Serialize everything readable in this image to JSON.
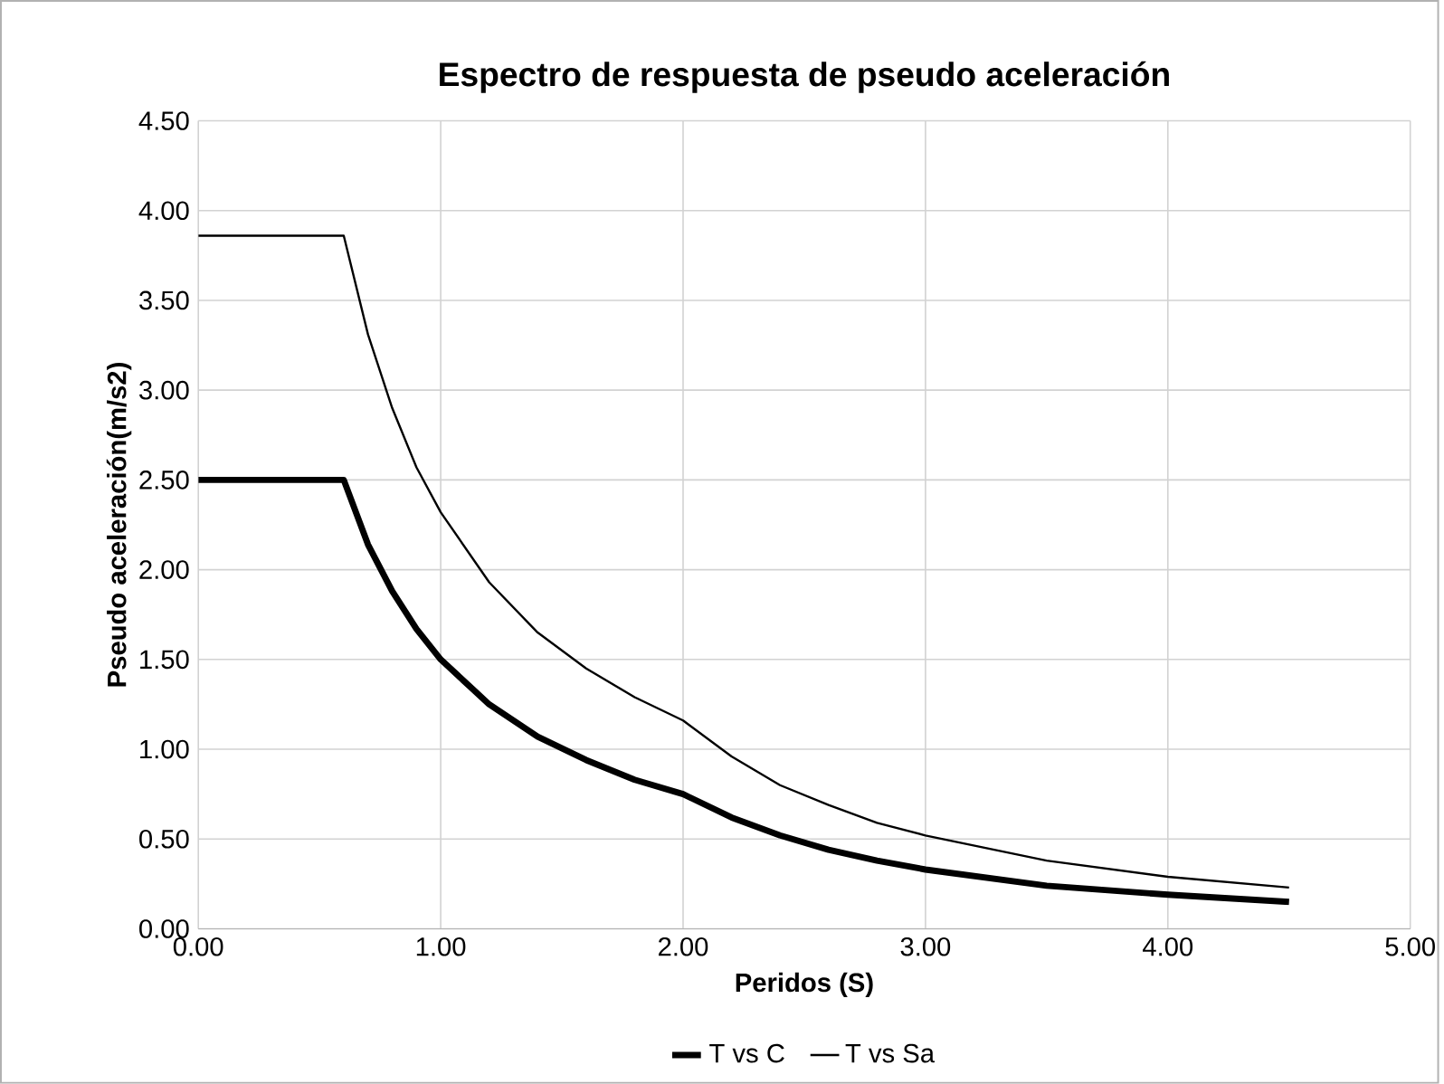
{
  "chart_data": {
    "type": "line",
    "title": "Espectro de respuesta de pseudo aceleración",
    "xlabel": "Peridos (S)",
    "ylabel": "Pseudo aceleración(m/s2)",
    "x": [
      0,
      0.6,
      0.7,
      0.8,
      0.9,
      1.0,
      1.2,
      1.4,
      1.6,
      1.8,
      2.0,
      2.2,
      2.4,
      2.6,
      2.8,
      3.0,
      3.5,
      4.0,
      4.5
    ],
    "series": [
      {
        "name": "T vs C",
        "color": "#000000",
        "values": [
          2.5,
          2.5,
          2.14,
          1.88,
          1.67,
          1.5,
          1.25,
          1.07,
          0.94,
          0.83,
          0.75,
          0.62,
          0.52,
          0.44,
          0.38,
          0.33,
          0.24,
          0.19,
          0.15
        ]
      },
      {
        "name": "T vs Sa",
        "color": "#000000",
        "values": [
          3.86,
          3.86,
          3.31,
          2.9,
          2.57,
          2.32,
          1.93,
          1.65,
          1.45,
          1.29,
          1.16,
          0.96,
          0.8,
          0.69,
          0.59,
          0.52,
          0.38,
          0.29,
          0.23
        ]
      }
    ],
    "xlim": [
      0,
      5
    ],
    "xticks": [
      {
        "value": 0,
        "label": "0.00"
      },
      {
        "value": 1,
        "label": "1.00"
      },
      {
        "value": 2,
        "label": "2.00"
      },
      {
        "value": 3,
        "label": "3.00"
      },
      {
        "value": 4,
        "label": "4.00"
      },
      {
        "value": 5,
        "label": "5.00"
      }
    ],
    "ylim": [
      0,
      4.5
    ],
    "yticks": [
      {
        "value": 0,
        "label": "0.00"
      },
      {
        "value": 0.5,
        "label": "0.50"
      },
      {
        "value": 1,
        "label": "1.00"
      },
      {
        "value": 1.5,
        "label": "1.50"
      },
      {
        "value": 2,
        "label": "2.00"
      },
      {
        "value": 2.5,
        "label": "2.50"
      },
      {
        "value": 3,
        "label": "3.00"
      },
      {
        "value": 3.5,
        "label": "3.50"
      },
      {
        "value": 4,
        "label": "4.00"
      },
      {
        "value": 4.5,
        "label": "4.50"
      }
    ],
    "grid": true,
    "legend": "bottom",
    "marker": "none",
    "line_style": "solid"
  }
}
